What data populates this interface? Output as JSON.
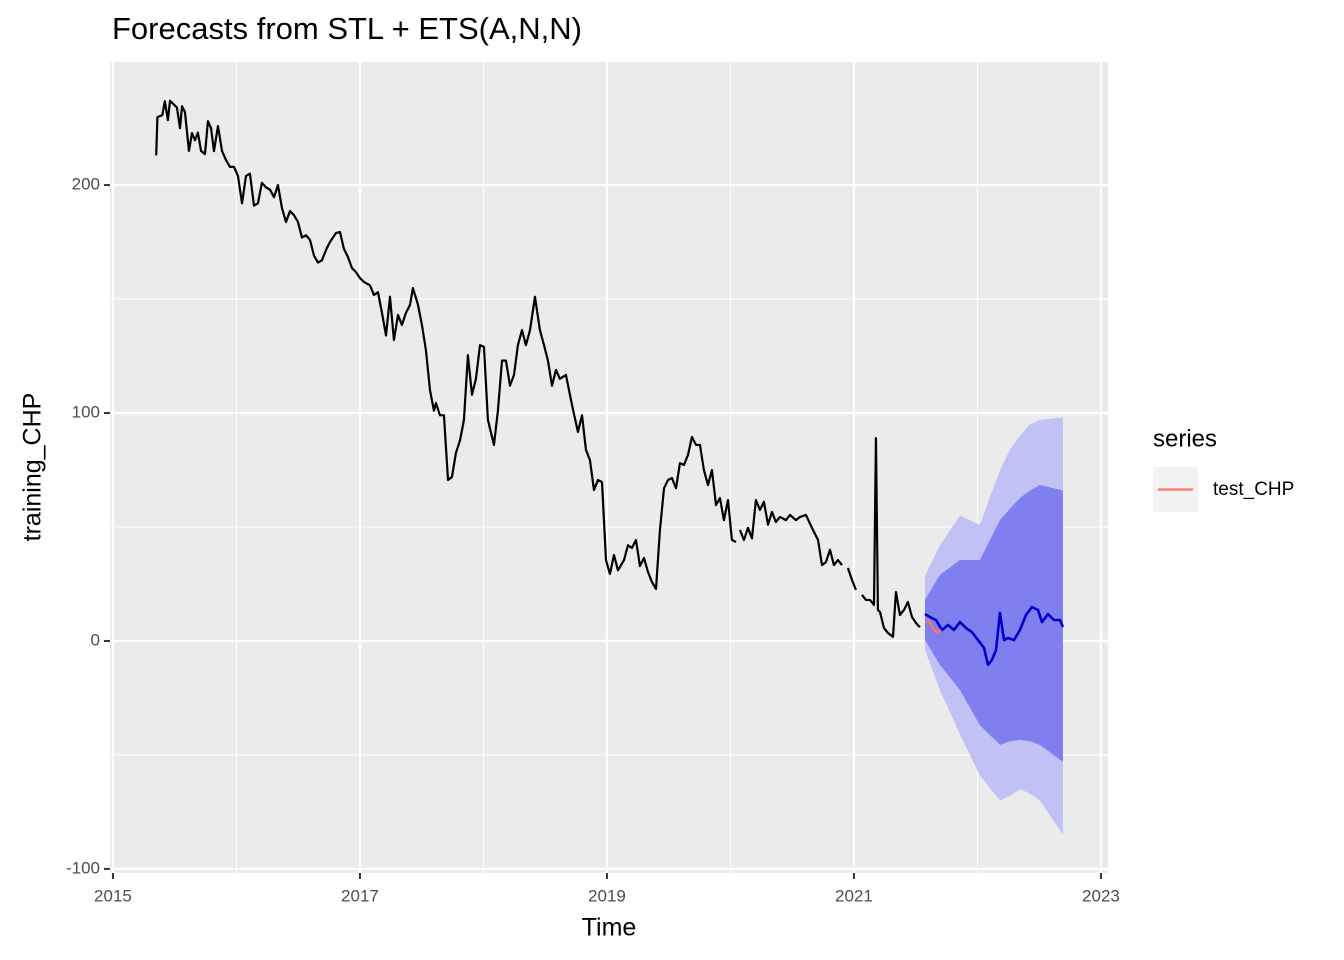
{
  "chart_data": {
    "type": "forecast",
    "title": "Forecasts from STL +  ETS(A,N,N)",
    "x_label": "Time",
    "y_label": "training_CHP",
    "xlim": [
      2014.976,
      2023.057
    ],
    "ylim": [
      -101.8,
      254
    ],
    "xticks": [
      2015,
      2017,
      2019,
      2021,
      2023
    ],
    "yticks": [
      -100,
      0,
      100,
      200
    ],
    "x_minor_ticks": [
      2016,
      2018,
      2020,
      2022
    ],
    "y_minor_ticks": [
      -50,
      50,
      150
    ],
    "grid": true,
    "legend_position": "right",
    "legend_title": "series",
    "training": {
      "color": "#000000",
      "x": [
        2015.35,
        2015.36,
        2015.4,
        2015.42,
        2015.445,
        2015.462,
        2015.518,
        2015.543,
        2015.559,
        2015.583,
        2015.615,
        2015.64,
        2015.664,
        2015.688,
        2015.713,
        2015.745,
        2015.769,
        2015.794,
        2015.818,
        2015.85,
        2015.883,
        2015.915,
        2015.947,
        2015.98,
        2016.012,
        2016.045,
        2016.077,
        2016.109,
        2016.142,
        2016.174,
        2016.206,
        2016.239,
        2016.271,
        2016.304,
        2016.336,
        2016.368,
        2016.401,
        2016.433,
        2016.466,
        2016.498,
        2016.53,
        2016.563,
        2016.595,
        2016.628,
        2016.66,
        2016.692,
        2016.725,
        2016.757,
        2016.806,
        2016.838,
        2016.87,
        2016.903,
        2016.935,
        2016.968,
        2017.0,
        2017.032,
        2017.081,
        2017.113,
        2017.146,
        2017.178,
        2017.211,
        2017.243,
        2017.275,
        2017.308,
        2017.34,
        2017.372,
        2017.405,
        2017.429,
        2017.47,
        2017.502,
        2017.534,
        2017.567,
        2017.599,
        2017.615,
        2017.648,
        2017.68,
        2017.713,
        2017.745,
        2017.777,
        2017.81,
        2017.842,
        2017.874,
        2017.907,
        2017.939,
        2017.972,
        2018.004,
        2018.036,
        2018.085,
        2018.117,
        2018.15,
        2018.182,
        2018.215,
        2018.247,
        2018.279,
        2018.312,
        2018.344,
        2018.377,
        2018.417,
        2018.457,
        2018.49,
        2018.522,
        2018.555,
        2018.587,
        2018.619,
        2018.668,
        2018.717,
        2018.765,
        2018.798,
        2018.83,
        2018.862,
        2018.895,
        2018.927,
        2018.96,
        2018.992,
        2019.024,
        2019.057,
        2019.089,
        2019.138,
        2019.17,
        2019.202,
        2019.235,
        2019.267,
        2019.3,
        2019.332,
        2019.364,
        2019.397,
        2019.429,
        2019.462,
        2019.494,
        2019.526,
        2019.559,
        2019.591,
        2019.623,
        2019.656,
        2019.688,
        2019.721,
        2019.753,
        2019.785,
        2019.818,
        2019.85,
        2019.883,
        2019.915,
        2019.947,
        2019.98,
        2020.012,
        2020.045,
        2020.053,
        2020.077,
        2020.109,
        2020.142,
        2020.174,
        2020.206,
        2020.239,
        2020.271,
        2020.304,
        2020.336,
        2020.368,
        2020.401,
        2020.449,
        2020.482,
        2020.53,
        2020.563,
        2020.611,
        2020.66,
        2020.709,
        2020.741,
        2020.773,
        2020.806,
        2020.838,
        2020.87,
        2020.903,
        2020.927,
        2020.951,
        2020.984,
        2021.016,
        2021.04,
        2021.065,
        2021.097,
        2021.13,
        2021.162,
        2021.178,
        2021.194,
        2021.211,
        2021.243,
        2021.275,
        2021.316,
        2021.34,
        2021.372,
        2021.405,
        2021.437,
        2021.47,
        2021.502,
        2021.534
      ],
      "values": [
        213,
        229.8,
        230.7,
        236.8,
        228.5,
        237,
        234,
        225,
        234.6,
        232,
        215,
        222.8,
        219.7,
        223,
        215,
        213.6,
        228,
        225,
        214.9,
        225.9,
        215,
        211,
        208,
        208,
        204,
        192,
        204,
        205,
        191,
        192,
        201,
        199,
        198,
        194.7,
        200,
        190,
        183.8,
        188.6,
        186.8,
        183.8,
        177,
        178,
        176,
        169,
        166,
        167,
        171.5,
        175,
        179,
        179.4,
        172,
        168.4,
        163.6,
        161.8,
        159.2,
        157.5,
        156,
        151.8,
        153,
        144,
        134,
        151,
        132,
        143,
        138.6,
        143.9,
        147.4,
        154.8,
        147.4,
        138.6,
        127.6,
        110,
        101,
        104.4,
        99,
        99,
        70.6,
        72,
        82.5,
        88,
        97,
        125.4,
        108,
        115,
        129.8,
        129,
        97,
        86,
        101,
        123,
        123,
        112,
        116.7,
        129.8,
        136.4,
        129.8,
        136.4,
        151,
        136.4,
        129.8,
        123,
        112,
        118.9,
        115,
        116.7,
        103.5,
        91.7,
        99,
        83.8,
        79.4,
        66.2,
        70.6,
        69.7,
        35.5,
        29.4,
        37.7,
        31,
        35.5,
        42,
        40.8,
        44.3,
        32.9,
        36.4,
        30.3,
        25.9,
        22.8,
        48.7,
        67,
        70.6,
        71.5,
        67,
        78,
        77.2,
        81.6,
        89.5,
        86,
        86,
        75,
        68.4,
        75,
        59.6,
        62.7,
        53,
        61.8,
        44.3,
        43.4,
        null,
        48.7,
        44.3,
        49.6,
        45,
        61.8,
        57.5,
        61,
        51,
        56.6,
        52.2,
        54.4,
        53,
        55.3,
        53,
        54.4,
        55.3,
        49.6,
        44.3,
        33.3,
        34.6,
        40,
        33.3,
        35.5,
        33.3,
        null,
        32,
        26.8,
        22.4,
        null,
        20.2,
        18,
        18,
        15.8,
        89,
        13.6,
        12.7,
        5.7,
        3.5,
        1.8,
        21.5,
        11.4,
        13.6,
        17.1,
        10.5,
        7.9,
        6
      ]
    },
    "forecast": {
      "color": "#0000cd",
      "x": [
        2021.575,
        2021.615,
        2021.664,
        2021.713,
        2021.761,
        2021.81,
        2021.858,
        2021.907,
        2021.955,
        2022.004,
        2022.053,
        2022.085,
        2022.117,
        2022.15,
        2022.182,
        2022.215,
        2022.247,
        2022.296,
        2022.344,
        2022.393,
        2022.441,
        2022.49,
        2022.522,
        2022.571,
        2022.619,
        2022.668,
        2022.692
      ],
      "values": [
        11.8,
        10.5,
        9.2,
        4.8,
        7,
        4.8,
        8.3,
        5.7,
        3.9,
        0.4,
        -3,
        -10.5,
        -8.3,
        -4,
        12.3,
        0.4,
        1.3,
        0.4,
        4.8,
        11.4,
        14.9,
        13.6,
        8.3,
        11.8,
        9.2,
        9.2,
        6.1
      ]
    },
    "bands": [
      {
        "color": "#c1c1f5",
        "x": [
          2021.575,
          2021.696,
          2021.858,
          2022.02,
          2022.182,
          2022.263,
          2022.344,
          2022.425,
          2022.506,
          2022.692
        ],
        "lower": [
          -4,
          -21.5,
          -41,
          -59,
          -70,
          -68,
          -65,
          -67,
          -70,
          -85
        ],
        "upper": [
          28.5,
          42,
          55,
          51,
          75,
          84,
          90,
          95,
          97,
          98
        ]
      },
      {
        "color": "#7f7fef",
        "x": [
          2021.575,
          2021.696,
          2021.858,
          2022.02,
          2022.182,
          2022.263,
          2022.344,
          2022.425,
          2022.506,
          2022.692
        ],
        "lower": [
          0.4,
          -10.5,
          -21.5,
          -37,
          -45.6,
          -44,
          -43.4,
          -44,
          -45.6,
          -53
        ],
        "upper": [
          18,
          29,
          35.5,
          35.5,
          53,
          58,
          62.7,
          66,
          68.4,
          66
        ]
      }
    ],
    "series": [
      {
        "name": "test_CHP",
        "color": "#f8766d",
        "x": [
          2021.575,
          2021.615,
          2021.648,
          2021.68,
          2021.705
        ],
        "values": [
          9.2,
          8.3,
          4.8,
          3.9,
          4.8
        ]
      }
    ]
  }
}
